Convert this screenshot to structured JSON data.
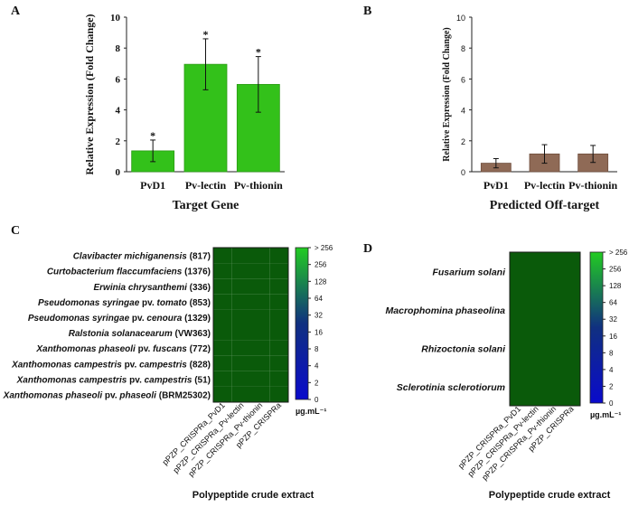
{
  "chart_data": [
    {
      "panel": "A",
      "type": "bar",
      "title": "",
      "xlabel": "Target Gene",
      "ylabel": "Relative Expression (Fold Change)",
      "ylim": [
        0,
        10
      ],
      "yticks": [
        "0",
        "2",
        "4",
        "6",
        "8",
        "10"
      ],
      "categories": [
        "PvD1",
        "Pv-lectin",
        "Pv-thionin"
      ],
      "values": [
        1.35,
        6.95,
        5.65
      ],
      "errors": [
        0.7,
        1.65,
        1.8
      ],
      "annotations": [
        "*",
        "*",
        "*"
      ],
      "color": "#33c11a",
      "grid": false
    },
    {
      "panel": "B",
      "type": "bar",
      "title": "",
      "xlabel": "Predicted Off-target",
      "ylabel": "Relative Expression (Fold Change)",
      "ylim": [
        0,
        10
      ],
      "yticks": [
        "0",
        "2",
        "4",
        "6",
        "8",
        "10"
      ],
      "categories": [
        "PvD1",
        "Pv-lectin",
        "Pv-thionin"
      ],
      "values": [
        0.55,
        1.15,
        1.15
      ],
      "errors": [
        0.3,
        0.6,
        0.55
      ],
      "color": "#8f6a56",
      "grid": false
    },
    {
      "panel": "C",
      "type": "heatmap",
      "xlabel": "Polypeptide crude extract",
      "rows": [
        {
          "italic": "Clavibacter michiganensis",
          "plain": " (817)"
        },
        {
          "italic": "Curtobacterium flaccumfaciens",
          "plain": " (1376)"
        },
        {
          "italic": "Erwinia chrysanthemi",
          "plain": " (336)"
        },
        {
          "italic": "Pseudomonas syringae",
          "plain": " pv. ",
          "italic2": "tomato",
          "plain2": " (853)"
        },
        {
          "italic": "Pseudomonas syringae",
          "plain": " pv. ",
          "italic2": "cenoura",
          "plain2": " (1329)"
        },
        {
          "italic": "Ralstonia solanacearum",
          "plain": " (VW363)"
        },
        {
          "italic": "Xanthomonas phaseoli",
          "plain": " pv. ",
          "italic2": "fuscans",
          "plain2": " (772)"
        },
        {
          "italic": "Xanthomonas campestris",
          "plain": " pv. ",
          "italic2": "campestris",
          "plain2": " (828)"
        },
        {
          "italic": "Xanthomonas campestris",
          "plain": " pv. ",
          "italic2": "campestris",
          "plain2": " (51)"
        },
        {
          "italic": "Xanthomonas phaseoli",
          "plain": " pv. ",
          "italic2": "phaseoli",
          "plain2": " (BRM25302)"
        }
      ],
      "columns": [
        "pPZP_CRISPRa_PvD1",
        "pPZP_CRISPRa_Pv-lectin",
        "pPZP_CRISPRa_Pv-thionin",
        "pPZP_CRISPRa"
      ],
      "value_label": "> 256",
      "cell_color": "#0a5a0a",
      "colorbar": {
        "ticks": [
          "> 256",
          "256",
          "128",
          "64",
          "32",
          "16",
          "8",
          "4",
          "2",
          "0"
        ],
        "unit": "µg.mL⁻¹",
        "colors": [
          "#22cc22",
          "#103080",
          "#0a0acc"
        ]
      }
    },
    {
      "panel": "D",
      "type": "heatmap",
      "xlabel": "Polypeptide crude extract",
      "rows": [
        {
          "italic": "Fusarium solani",
          "plain": ""
        },
        {
          "italic": "Macrophomina phaseolina",
          "plain": ""
        },
        {
          "italic": "Rhizoctonia solani",
          "plain": ""
        },
        {
          "italic": "Sclerotinia sclerotiorum",
          "plain": ""
        }
      ],
      "columns": [
        "pPZP_CRISPRa_PvD1",
        "pPZP_CRISPRa_Pv-lectin",
        "pPZP_CRISPRa_Pv-thionin",
        "pPZP_CRISPRa"
      ],
      "value_label": "> 256",
      "cell_color": "#0a5a0a",
      "colorbar": {
        "ticks": [
          "> 256",
          "256",
          "128",
          "64",
          "32",
          "16",
          "8",
          "4",
          "2",
          "0"
        ],
        "unit": "µg.mL⁻¹",
        "colors": [
          "#22cc22",
          "#103080",
          "#0a0acc"
        ]
      }
    }
  ]
}
